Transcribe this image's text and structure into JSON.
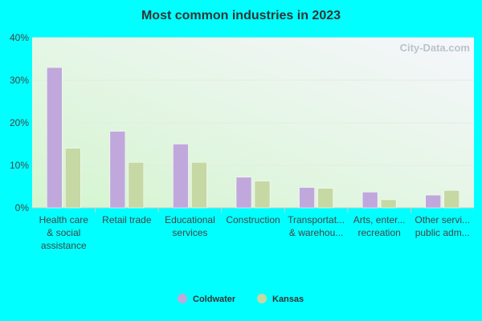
{
  "chart_data": {
    "type": "bar",
    "title": "Most common industries in 2023",
    "watermark": "City-Data.com",
    "categories": [
      "Health care\n& social\nassistance",
      "Retail trade",
      "Educational\nservices",
      "Construction",
      "Transportat...\n& warehou...",
      "Arts, enter...\nrecreation",
      "Other servi...\npublic adm..."
    ],
    "series": [
      {
        "name": "Coldwater",
        "color": "#c0a8dc",
        "values": [
          33,
          18,
          15,
          7.2,
          4.8,
          3.7,
          3.0
        ]
      },
      {
        "name": "Kansas",
        "color": "#c6d8a4",
        "values": [
          14,
          10.7,
          10.7,
          6.3,
          4.6,
          1.9,
          4.1
        ]
      }
    ],
    "ylim": [
      0,
      40
    ],
    "yticks": [
      {
        "value": 0,
        "label": "0%"
      },
      {
        "value": 10,
        "label": "10%"
      },
      {
        "value": 20,
        "label": "20%"
      },
      {
        "value": 30,
        "label": "30%"
      },
      {
        "value": 40,
        "label": "40%"
      }
    ],
    "grid": true
  }
}
